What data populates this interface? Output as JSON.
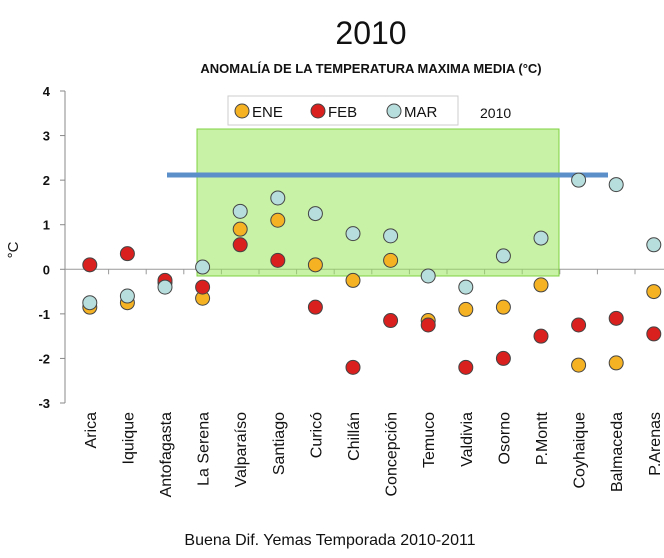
{
  "chart_data": {
    "type": "scatter",
    "title": "2010",
    "subtitle": "ANOMALÍA DE LA TEMPERATURA MAXIMA MEDIA (°C)",
    "y_label": "°C",
    "annotation": "2010",
    "footer": "Buena Dif. Yemas Temporada 2010-2011",
    "categories": [
      "Arica",
      "Iquique",
      "Antofagasta",
      "La Serena",
      "Valparaíso",
      "Santiago",
      "Curicó",
      "Chillán",
      "Concepción",
      "Temuco",
      "Valdivia",
      "Osorno",
      "P.Montt",
      "Coyhaique",
      "Balmaceda",
      "P.Arenas"
    ],
    "series": [
      {
        "name": "ENE",
        "color": "#f5b324",
        "values": [
          -0.85,
          -0.75,
          -0.3,
          -0.65,
          0.9,
          1.1,
          0.1,
          -0.25,
          0.2,
          -1.15,
          -0.9,
          -0.85,
          -0.35,
          -2.15,
          -2.1,
          -0.5
        ]
      },
      {
        "name": "FEB",
        "color": "#d9201f",
        "values": [
          0.1,
          0.35,
          -0.25,
          -0.4,
          0.55,
          0.2,
          -0.85,
          -2.2,
          -1.15,
          -1.25,
          -2.2,
          -2.0,
          -1.5,
          -1.25,
          -1.1,
          -1.45
        ]
      },
      {
        "name": "MAR",
        "color": "#b7dedd",
        "values": [
          -0.75,
          -0.6,
          -0.4,
          0.05,
          1.3,
          1.6,
          1.25,
          0.8,
          0.75,
          -0.15,
          -0.4,
          0.3,
          0.7,
          2.0,
          1.9,
          0.55
        ]
      }
    ],
    "ylim": [
      -3,
      4
    ],
    "yticks": [
      -3,
      -2,
      -1,
      0,
      1,
      2,
      3,
      4
    ]
  }
}
